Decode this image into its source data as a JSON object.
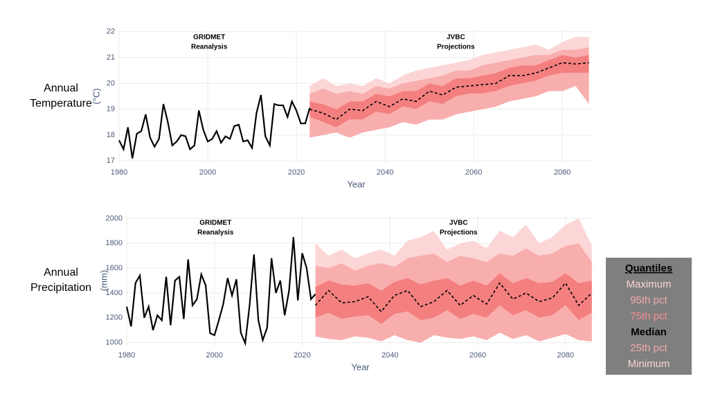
{
  "chart_data": [
    {
      "type": "line",
      "row_label": [
        "Annual",
        "Temperature"
      ],
      "y_label": "(°C)",
      "x_label": "Year",
      "annotations": [
        [
          "GRIDMET",
          "Reanalysis"
        ],
        [
          "JVBC",
          "Projections"
        ]
      ],
      "xlim": [
        1980,
        2087
      ],
      "xticks": [
        1980,
        2000,
        2020,
        2040,
        2060,
        2080
      ],
      "ylim": [
        16.9,
        22.1
      ],
      "yticks": [
        17,
        18,
        19,
        20,
        21,
        22
      ],
      "grid": true,
      "observed": {
        "color": "#000000",
        "x": [
          1980,
          1981,
          1982,
          1983,
          1984,
          1985,
          1986,
          1987,
          1988,
          1989,
          1990,
          1991,
          1992,
          1993,
          1994,
          1995,
          1996,
          1997,
          1998,
          1999,
          2000,
          2001,
          2002,
          2003,
          2004,
          2005,
          2006,
          2007,
          2008,
          2009,
          2010,
          2011,
          2012,
          2013,
          2014,
          2015,
          2016,
          2017,
          2018,
          2019,
          2020,
          2021,
          2022,
          2023
        ],
        "values": [
          17.8,
          17.45,
          18.3,
          17.1,
          18.05,
          18.15,
          18.8,
          17.9,
          17.55,
          17.85,
          19.2,
          18.5,
          17.6,
          17.75,
          18.0,
          17.95,
          17.45,
          17.6,
          18.95,
          18.2,
          17.75,
          17.85,
          18.15,
          17.7,
          17.95,
          17.85,
          18.35,
          18.4,
          17.75,
          17.8,
          17.5,
          18.85,
          19.55,
          17.95,
          17.6,
          19.2,
          19.15,
          19.15,
          18.7,
          19.3,
          18.95,
          18.45,
          18.45,
          19.05
        ]
      },
      "projection": {
        "x": [
          2023,
          2026,
          2029,
          2032,
          2035,
          2038,
          2041,
          2044,
          2047,
          2050,
          2053,
          2056,
          2059,
          2062,
          2065,
          2068,
          2071,
          2074,
          2077,
          2080,
          2083,
          2086
        ],
        "series": [
          {
            "color": "#fcd6d6",
            "values": [
              19.9,
              20.2,
              19.9,
              20.0,
              19.9,
              20.2,
              20.0,
              20.3,
              20.5,
              20.6,
              20.7,
              20.8,
              20.9,
              21.1,
              21.2,
              21.3,
              21.4,
              21.5,
              21.3,
              21.6,
              21.8,
              21.8
            ]
          },
          {
            "color": "#f9aeae",
            "values": [
              19.6,
              19.8,
              19.6,
              19.7,
              19.6,
              19.9,
              19.8,
              20.0,
              20.1,
              20.2,
              20.3,
              20.5,
              20.5,
              20.7,
              20.8,
              20.9,
              21.0,
              21.1,
              21.1,
              21.3,
              21.3,
              21.4
            ]
          },
          {
            "color": "#f47f7f",
            "values": [
              19.3,
              19.2,
              19.0,
              19.3,
              19.3,
              19.6,
              19.5,
              19.7,
              19.7,
              20.0,
              19.9,
              20.2,
              20.2,
              20.3,
              20.4,
              20.6,
              20.7,
              20.7,
              20.9,
              21.1,
              21.0,
              21.1
            ]
          },
          {
            "color": "#000000",
            "dash": true,
            "values": [
              19.0,
              18.85,
              18.6,
              19.0,
              18.95,
              19.3,
              19.1,
              19.4,
              19.3,
              19.7,
              19.55,
              19.85,
              19.9,
              19.95,
              20.0,
              20.3,
              20.3,
              20.4,
              20.6,
              20.8,
              20.75,
              20.8
            ]
          },
          {
            "color": "#f47f7f",
            "values": [
              18.7,
              18.5,
              18.3,
              18.6,
              18.6,
              18.9,
              18.8,
              19.1,
              19.0,
              19.3,
              19.2,
              19.5,
              19.6,
              19.6,
              19.7,
              19.9,
              20.0,
              20.1,
              20.3,
              20.4,
              20.4,
              20.4
            ]
          },
          {
            "color": "#f9aeae",
            "values": [
              17.9,
              18.0,
              18.1,
              17.9,
              18.1,
              18.2,
              18.3,
              18.5,
              18.4,
              18.6,
              18.6,
              18.8,
              18.9,
              19.0,
              19.1,
              19.3,
              19.4,
              19.5,
              19.7,
              19.7,
              19.9,
              19.2
            ]
          }
        ]
      }
    },
    {
      "type": "line",
      "row_label": [
        "Annual",
        "Precipitation"
      ],
      "y_label": "(mm)",
      "x_label": "Year",
      "annotations": [
        [
          "GRIDMET",
          "Reanalysis"
        ],
        [
          "JVBC",
          "Projections"
        ]
      ],
      "xlim": [
        1980,
        2086.5
      ],
      "xticks": [
        1980,
        2000,
        2020,
        2040,
        2060,
        2080
      ],
      "ylim": [
        970,
        2030
      ],
      "yticks": [
        1000,
        1200,
        1400,
        1600,
        1800,
        2000
      ],
      "grid": true,
      "observed": {
        "color": "#000000",
        "x": [
          1980,
          1981,
          1982,
          1983,
          1984,
          1985,
          1986,
          1987,
          1988,
          1989,
          1990,
          1991,
          1992,
          1993,
          1994,
          1995,
          1996,
          1997,
          1998,
          1999,
          2000,
          2001,
          2002,
          2003,
          2004,
          2005,
          2006,
          2007,
          2008,
          2009,
          2010,
          2011,
          2012,
          2013,
          2014,
          2015,
          2016,
          2017,
          2018,
          2019,
          2020,
          2021,
          2022,
          2023
        ],
        "values": [
          1290,
          1130,
          1480,
          1540,
          1200,
          1290,
          1100,
          1220,
          1180,
          1530,
          1140,
          1500,
          1530,
          1190,
          1670,
          1300,
          1350,
          1550,
          1460,
          1075,
          1060,
          1180,
          1310,
          1520,
          1380,
          1510,
          1080,
          995,
          1300,
          1710,
          1180,
          1020,
          1120,
          1680,
          1400,
          1500,
          1220,
          1420,
          1850,
          1340,
          1720,
          1600,
          1350,
          1390
        ]
      },
      "projection": {
        "x": [
          2023,
          2026,
          2029,
          2032,
          2035,
          2038,
          2041,
          2044,
          2047,
          2050,
          2053,
          2056,
          2059,
          2062,
          2065,
          2068,
          2071,
          2074,
          2077,
          2080,
          2083,
          2086
        ],
        "series": [
          {
            "color": "#fcd6d6",
            "values": [
              1800,
              1700,
              1750,
              1680,
              1720,
              1750,
              1700,
              1820,
              1850,
              1900,
              1750,
              1800,
              1820,
              1760,
              1900,
              1850,
              1950,
              1800,
              1850,
              1950,
              2000,
              1780
            ]
          },
          {
            "color": "#f9aeae",
            "values": [
              1620,
              1600,
              1640,
              1580,
              1620,
              1640,
              1610,
              1680,
              1700,
              1720,
              1650,
              1700,
              1680,
              1650,
              1720,
              1700,
              1760,
              1700,
              1720,
              1780,
              1800,
              1650
            ]
          },
          {
            "color": "#f47f7f",
            "values": [
              1450,
              1500,
              1470,
              1460,
              1480,
              1420,
              1490,
              1520,
              1470,
              1500,
              1520,
              1460,
              1500,
              1460,
              1560,
              1480,
              1520,
              1480,
              1490,
              1560,
              1480,
              1500
            ]
          },
          {
            "color": "#000000",
            "dash": true,
            "values": [
              1300,
              1420,
              1320,
              1330,
              1370,
              1250,
              1380,
              1420,
              1290,
              1330,
              1420,
              1300,
              1380,
              1310,
              1480,
              1350,
              1400,
              1330,
              1360,
              1480,
              1300,
              1400
            ]
          },
          {
            "color": "#f47f7f",
            "values": [
              1200,
              1240,
              1190,
              1210,
              1220,
              1150,
              1230,
              1250,
              1180,
              1200,
              1260,
              1190,
              1230,
              1200,
              1300,
              1220,
              1260,
              1200,
              1220,
              1300,
              1180,
              1240
            ]
          },
          {
            "color": "#f9aeae",
            "values": [
              1050,
              1030,
              1020,
              1050,
              1040,
              1010,
              1060,
              1020,
              1000,
              1060,
              1040,
              1030,
              1050,
              1020,
              1080,
              1030,
              1060,
              1010,
              1040,
              1070,
              1020,
              1010
            ]
          }
        ]
      }
    }
  ],
  "legend": {
    "title": "Quantiles",
    "entries": [
      {
        "label": "Maximum",
        "color": "#f9d4d4"
      },
      {
        "label": "95th pct",
        "color": "#f5a8a8"
      },
      {
        "label": "75th pct",
        "color": "#f58f8f"
      },
      {
        "label": "Median",
        "color": "#000000"
      },
      {
        "label": "25th pct",
        "color": "#f5a8a8"
      },
      {
        "label": "Minimum",
        "color": "#f9d4d4"
      }
    ]
  }
}
